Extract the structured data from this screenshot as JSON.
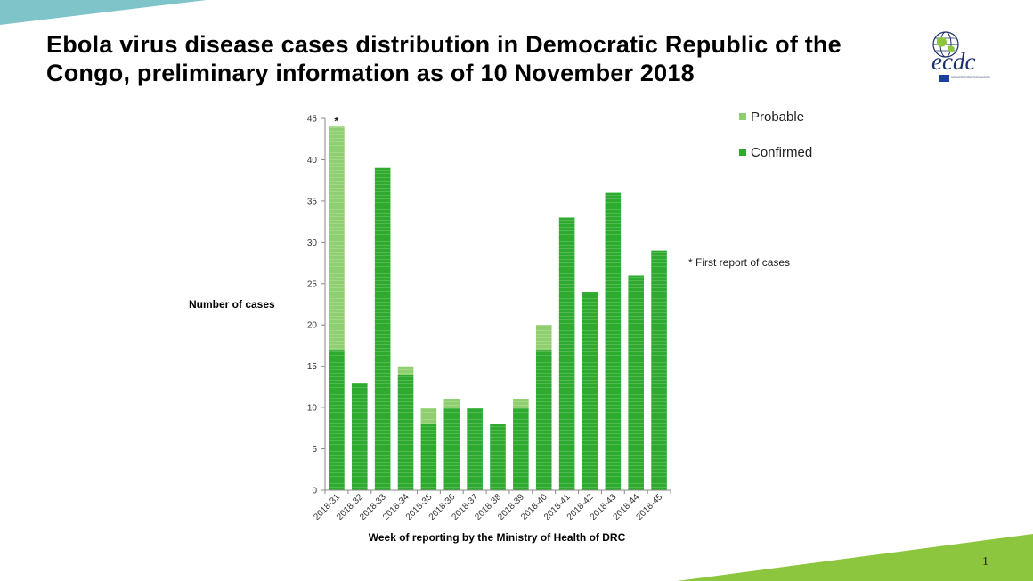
{
  "slide": {
    "title": "Ebola virus disease cases distribution in Democratic Republic of the Congo, preliminary information as of 10 November 2018",
    "page_number": "1",
    "logo": {
      "name": "ecdc-logo",
      "text": "ecdc",
      "tagline": "EUROPEAN CENTRE FOR DISEASE PREVENTION AND CONTROL"
    },
    "colors": {
      "accent_teal": "#7fc4c9",
      "accent_green": "#8cc63f",
      "logo_navy": "#1b2f6b"
    }
  },
  "chart_data": {
    "type": "bar",
    "stacked": true,
    "categories": [
      "2018-31",
      "2018-32",
      "2018-33",
      "2018-34",
      "2018-35",
      "2018-36",
      "2018-37",
      "2018-38",
      "2018-39",
      "2018-40",
      "2018-41",
      "2018-42",
      "2018-43",
      "2018-44",
      "2018-45"
    ],
    "series": [
      {
        "name": "Confirmed",
        "color": "#2eaa2e",
        "values": [
          17,
          13,
          39,
          14,
          8,
          10,
          10,
          8,
          10,
          17,
          33,
          24,
          36,
          26,
          29
        ]
      },
      {
        "name": "Probable",
        "color": "#8fcf70",
        "values": [
          27,
          0,
          0,
          1,
          2,
          1,
          0,
          0,
          1,
          3,
          0,
          0,
          0,
          0,
          0
        ]
      }
    ],
    "xlabel": "Week of reporting by the Ministry of Health of DRC",
    "ylabel": "Number of cases",
    "ylim": [
      0,
      45
    ],
    "yticks": [
      0,
      5,
      10,
      15,
      20,
      25,
      30,
      35,
      40,
      45
    ],
    "grid": false,
    "legend_placement": "top-right",
    "legend_order": [
      "Probable",
      "Confirmed"
    ],
    "bar_marker": {
      "category": "2018-31",
      "text": "*"
    },
    "annotation": "* First report of cases"
  }
}
